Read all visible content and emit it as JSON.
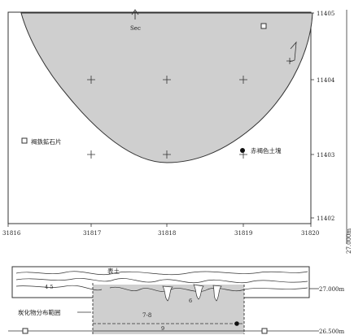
{
  "plan": {
    "grid_x": [
      "31816",
      "31817",
      "31818",
      "31819",
      "31820"
    ],
    "grid_y": [
      "11405",
      "11404",
      "11403",
      "11402"
    ],
    "section_marker": "Sec",
    "legend": {
      "stone_fragment": "褐鉄鉱石片",
      "clay_block": "赤褐色土塊"
    },
    "elevation_side": "27.000m"
  },
  "section": {
    "topsoil": "表土",
    "charcoal_range": "炭化物分布範囲",
    "layer_a": "4-5",
    "layer_b": "6",
    "layer_c": "7-8",
    "layer_d": "9",
    "level_upper": "27.000m",
    "level_lower": "26.500m"
  },
  "colors": {
    "fill": "#cfcfcf",
    "line": "#333333"
  }
}
